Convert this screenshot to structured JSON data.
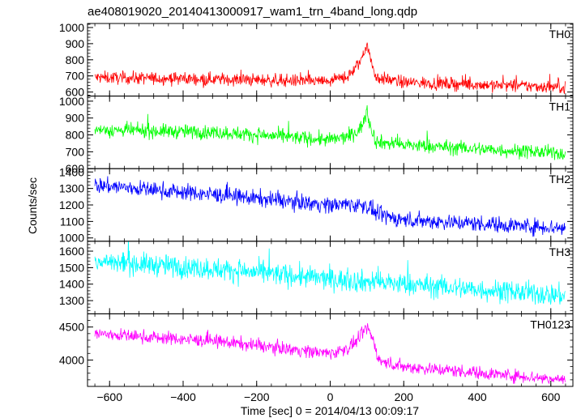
{
  "title": "ae408019020_20140413000917_wam1_trn_4band_long.qdp",
  "chart_data": {
    "type": "line",
    "xlabel": "Time [sec] 0 = 2014/04/13 00:09:17",
    "ylabel": "Counts/sec",
    "xlim": [
      -660,
      660
    ],
    "x_ticks": [
      -600,
      -400,
      -200,
      0,
      200,
      400,
      600
    ],
    "x_tick_labels": [
      "−600",
      "−400",
      "−200",
      "0",
      "200",
      "400",
      "600"
    ],
    "grid": false,
    "panels": [
      {
        "name": "TH0",
        "color": "#ff0000",
        "ylim": [
          575,
          1025
        ],
        "y_ticks": [
          600,
          700,
          800,
          900,
          1000
        ],
        "y_tick_labels": [
          "600",
          "700",
          "800",
          "900",
          "1000"
        ],
        "baseline": [
          [
            -640,
            690
          ],
          [
            -300,
            680
          ],
          [
            0,
            665
          ],
          [
            50,
            700
          ],
          [
            80,
            780
          ],
          [
            100,
            900
          ],
          [
            110,
            800
          ],
          [
            125,
            690
          ],
          [
            200,
            660
          ],
          [
            640,
            630
          ]
        ],
        "noise": 28
      },
      {
        "name": "TH1",
        "color": "#00ff00",
        "ylim": [
          600,
          1030
        ],
        "y_ticks": [
          600,
          700,
          800,
          900,
          1000
        ],
        "y_tick_labels": [
          "600",
          "700",
          "800",
          "900",
          "1000"
        ],
        "baseline": [
          [
            -640,
            830
          ],
          [
            -300,
            815
          ],
          [
            0,
            770
          ],
          [
            50,
            790
          ],
          [
            80,
            830
          ],
          [
            100,
            930
          ],
          [
            110,
            850
          ],
          [
            125,
            760
          ],
          [
            200,
            740
          ],
          [
            640,
            690
          ]
        ],
        "noise": 30
      },
      {
        "name": "TH2",
        "color": "#0000ff",
        "ylim": [
          980,
          1420
        ],
        "y_ticks": [
          1000,
          1100,
          1200,
          1300,
          1400
        ],
        "y_tick_labels": [
          "1000",
          "1100",
          "1200",
          "1300",
          "1400"
        ],
        "baseline": [
          [
            -640,
            1320
          ],
          [
            -300,
            1260
          ],
          [
            0,
            1200
          ],
          [
            50,
            1205
          ],
          [
            100,
            1195
          ],
          [
            130,
            1140
          ],
          [
            200,
            1110
          ],
          [
            640,
            1060
          ]
        ],
        "noise": 35
      },
      {
        "name": "TH3",
        "color": "#00ffff",
        "ylim": [
          1220,
          1660
        ],
        "y_ticks": [
          1300,
          1400,
          1500,
          1600
        ],
        "y_tick_labels": [
          "1300",
          "1400",
          "1500",
          "1600"
        ],
        "baseline": [
          [
            -640,
            1540
          ],
          [
            -300,
            1490
          ],
          [
            0,
            1430
          ],
          [
            200,
            1400
          ],
          [
            640,
            1330
          ]
        ],
        "noise": 48
      },
      {
        "name": "TH0123",
        "color": "#ff00ff",
        "ylim": [
          3600,
          4700
        ],
        "y_ticks": [
          4000,
          4500
        ],
        "y_tick_labels": [
          "4000",
          "4500"
        ],
        "baseline": [
          [
            -640,
            4400
          ],
          [
            -300,
            4280
          ],
          [
            0,
            4100
          ],
          [
            50,
            4180
          ],
          [
            80,
            4330
          ],
          [
            100,
            4500
          ],
          [
            115,
            4330
          ],
          [
            135,
            3980
          ],
          [
            200,
            3900
          ],
          [
            640,
            3700
          ]
        ],
        "noise": 70
      }
    ]
  }
}
